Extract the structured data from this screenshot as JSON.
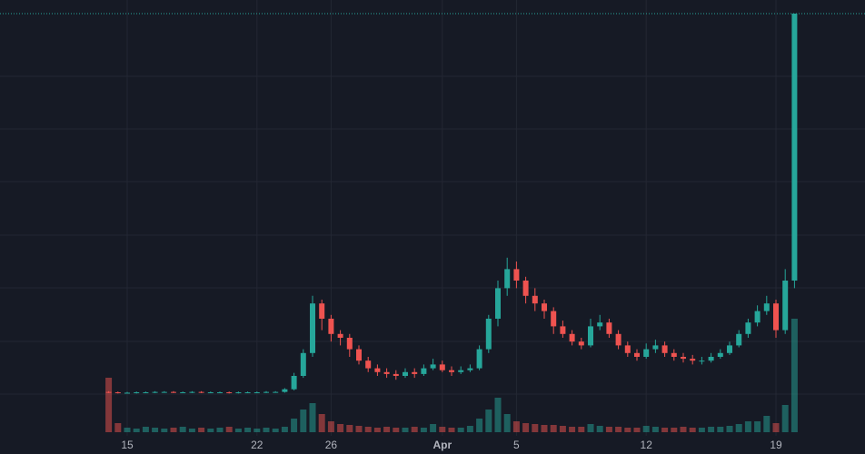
{
  "chart_data": {
    "type": "candlestick",
    "categories": [
      null,
      null,
      "15",
      null,
      null,
      null,
      null,
      null,
      null,
      null,
      null,
      null,
      null,
      null,
      null,
      null,
      "22",
      null,
      null,
      null,
      null,
      null,
      null,
      null,
      "26",
      null,
      null,
      null,
      null,
      null,
      null,
      null,
      null,
      null,
      null,
      null,
      "Apr",
      null,
      null,
      null,
      null,
      null,
      null,
      null,
      "5",
      null,
      null,
      null,
      null,
      null,
      null,
      null,
      null,
      null,
      null,
      null,
      null,
      null,
      "12",
      null,
      null,
      null,
      null,
      null,
      null,
      null,
      null,
      null,
      null,
      null,
      null,
      null,
      "19",
      null,
      null
    ],
    "open": [
      0.8,
      0.7,
      0.6,
      0.6,
      0.7,
      0.7,
      0.8,
      0.8,
      0.7,
      0.7,
      0.8,
      0.7,
      0.7,
      0.7,
      0.6,
      0.7,
      0.7,
      0.7,
      0.8,
      0.8,
      1.5,
      5,
      11,
      24,
      20,
      16,
      15,
      12,
      9,
      7,
      6,
      5.5,
      5,
      6,
      5.5,
      7,
      8,
      6.5,
      6,
      6.5,
      7,
      12,
      20,
      28,
      33,
      30,
      26,
      24,
      22,
      18,
      16,
      14,
      13,
      18,
      19,
      16,
      13,
      11,
      10,
      12,
      13,
      11,
      10,
      9.5,
      9,
      9,
      10,
      11,
      13,
      16,
      19,
      22,
      24,
      17,
      30
    ],
    "high": [
      1.0,
      0.9,
      0.8,
      0.9,
      0.9,
      1.0,
      1.0,
      1.0,
      0.9,
      1.0,
      1.0,
      0.9,
      0.9,
      0.9,
      0.9,
      0.9,
      0.9,
      1.0,
      1.0,
      1.8,
      5.8,
      12,
      26,
      25,
      21,
      17,
      16,
      13,
      10,
      8,
      7,
      6.5,
      7,
      7,
      8,
      9.5,
      9,
      7.5,
      7.5,
      8,
      13,
      21,
      30,
      36,
      35,
      31,
      28,
      25,
      23,
      19.5,
      17,
      15,
      20,
      21,
      20,
      17,
      14,
      12,
      13.5,
      14.5,
      14,
      12,
      11,
      10.5,
      10,
      11,
      12,
      14,
      17,
      20,
      23.5,
      26,
      25,
      33,
      100
    ],
    "low": [
      0.5,
      0.4,
      0.4,
      0.4,
      0.5,
      0.5,
      0.6,
      0.5,
      0.5,
      0.5,
      0.5,
      0.5,
      0.5,
      0.4,
      0.4,
      0.5,
      0.5,
      0.5,
      0.6,
      0.6,
      1.2,
      4.5,
      10,
      17,
      14,
      13,
      10,
      8,
      6,
      5,
      4.5,
      4,
      4.5,
      4.5,
      5,
      6.5,
      6,
      5,
      5.5,
      6,
      6.5,
      11,
      18,
      26,
      28,
      24,
      22,
      20,
      16,
      15,
      13,
      12,
      12.5,
      17,
      15,
      12,
      10,
      9,
      9.5,
      11,
      10,
      9,
      8.5,
      8,
      8,
      8.5,
      9.5,
      10.5,
      12.5,
      15,
      18,
      21,
      15,
      16,
      28
    ],
    "close": [
      0.7,
      0.6,
      0.6,
      0.7,
      0.7,
      0.8,
      0.8,
      0.7,
      0.7,
      0.8,
      0.7,
      0.7,
      0.7,
      0.6,
      0.7,
      0.7,
      0.7,
      0.8,
      0.8,
      1.5,
      5,
      11,
      24,
      20,
      16,
      15,
      12,
      9,
      7,
      6,
      5.5,
      5,
      6,
      5.5,
      7,
      8,
      6.5,
      6,
      6.5,
      7,
      12,
      20,
      28,
      33,
      30,
      26,
      24,
      22,
      18,
      16,
      14,
      13,
      18,
      19,
      16,
      13,
      11,
      10,
      12,
      13,
      11,
      10,
      9.5,
      9,
      9,
      10,
      11,
      13,
      16,
      19,
      22,
      24,
      17,
      30,
      100
    ],
    "volume": [
      60,
      10,
      5,
      4,
      6,
      5,
      4,
      5,
      6,
      4,
      5,
      4,
      5,
      6,
      4,
      5,
      4,
      5,
      4,
      6,
      15,
      25,
      32,
      20,
      12,
      9,
      8,
      7,
      6,
      5,
      6,
      5,
      5,
      6,
      5,
      9,
      6,
      5,
      5,
      7,
      15,
      25,
      38,
      20,
      12,
      10,
      9,
      8,
      8,
      7,
      6,
      6,
      9,
      7,
      6,
      6,
      5,
      5,
      7,
      6,
      5,
      5,
      6,
      5,
      5,
      6,
      6,
      7,
      9,
      12,
      12,
      18,
      10,
      30,
      125
    ],
    "ylim": [
      0,
      100
    ],
    "volume_lim": [
      0,
      130
    ],
    "up_color": "#26a69a",
    "down_color": "#ef5350"
  }
}
